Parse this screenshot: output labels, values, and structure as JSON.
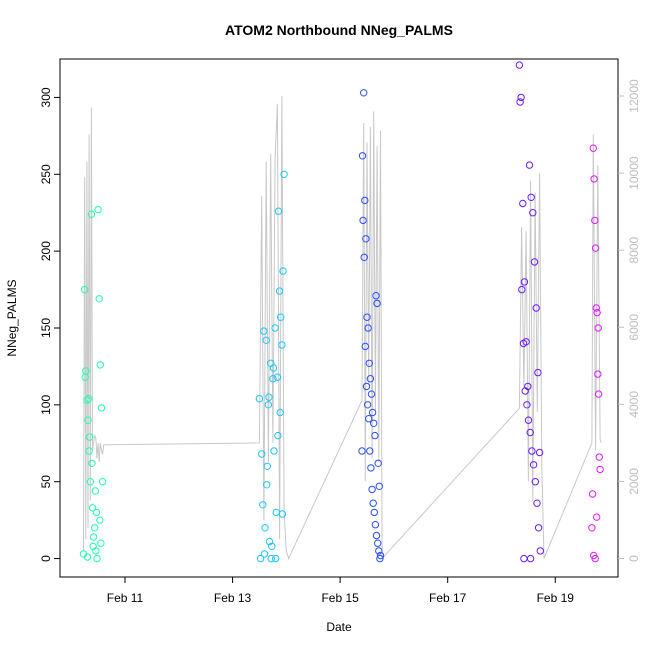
{
  "chart_data": {
    "type": "scatter",
    "title": "ATOM2 Northbound NNeg_PALMS",
    "xlabel": "Date",
    "ylabel": "NNeg_PALMS",
    "x_unit": "days",
    "xlim": [
      "Feb 9 19:00",
      "Feb 20 04:00"
    ],
    "ylim": [
      -12,
      325
    ],
    "y2lim": [
      -480,
      12960
    ],
    "x_ticks": [
      {
        "label": "Feb 11",
        "value": "Feb 11"
      },
      {
        "label": "Feb 13",
        "value": "Feb 13"
      },
      {
        "label": "Feb 15",
        "value": "Feb 15"
      },
      {
        "label": "Feb 17",
        "value": "Feb 17"
      },
      {
        "label": "Feb 19",
        "value": "Feb 19"
      }
    ],
    "y_ticks": [
      0,
      50,
      100,
      150,
      200,
      250,
      300
    ],
    "y2_ticks": [
      0,
      2000,
      4000,
      6000,
      8000,
      10000,
      12000
    ],
    "grid": false,
    "legend": "none",
    "colors": {
      "flight1": "#1fffb0",
      "flight2": "#1ac6ff",
      "flight3": "#2a4dff",
      "flight4": "#6a1aff",
      "flight5": "#e01aff",
      "altitude_line": "#c8c8c8",
      "axis": "#000000",
      "right_axis": "#bdbdbd"
    },
    "series": [
      {
        "name": "",
        "color": "#1fffb0",
        "x": [
          "Feb 10 06:00",
          "Feb 10 06:30",
          "Feb 10 07:00",
          "Feb 10 07:30",
          "Feb 10 08:00",
          "Feb 10 08:30",
          "Feb 10 09:00",
          "Feb 10 09:30",
          "Feb 10 10:00",
          "Feb 10 10:30",
          "Feb 10 11:00",
          "Feb 10 11:30",
          "Feb 10 12:00",
          "Feb 10 12:30",
          "Feb 10 13:00",
          "Feb 10 13:30",
          "Feb 10 14:00",
          "Feb 10 05:30",
          "Feb 10 06:15",
          "Feb 10 07:45",
          "Feb 10 08:15",
          "Feb 10 09:15",
          "Feb 10 10:45",
          "Feb 10 11:15",
          "Feb 10 12:45",
          "Feb 10 13:15",
          "Feb 10 07:15",
          "Feb 10 09:45"
        ],
        "y": [
          175,
          122,
          103,
          90,
          70,
          50,
          224,
          33,
          14,
          20,
          5,
          0,
          227,
          169,
          126,
          98,
          50,
          3,
          118,
          104,
          79,
          62,
          44,
          30,
          25,
          10,
          1,
          8
        ]
      },
      {
        "name": "",
        "color": "#1ac6ff",
        "x": [
          "Feb 13 12:00",
          "Feb 13 13:00",
          "Feb 13 14:00",
          "Feb 13 15:00",
          "Feb 13 16:00",
          "Feb 13 17:00",
          "Feb 13 18:00",
          "Feb 13 19:00",
          "Feb 13 20:00",
          "Feb 13 21:00",
          "Feb 13 22:00",
          "Feb 13 23:00",
          "Feb 13 12:30",
          "Feb 13 13:30",
          "Feb 13 14:30",
          "Feb 13 15:30",
          "Feb 13 16:30",
          "Feb 13 17:30",
          "Feb 13 18:30",
          "Feb 13 19:30",
          "Feb 13 20:30",
          "Feb 13 21:30",
          "Feb 13 22:30",
          "Feb 13 16:15",
          "Feb 13 18:15",
          "Feb 13 20:15",
          "Feb 13 15:15",
          "Feb 13 19:15",
          "Feb 13 21:15",
          "Feb 13 17:15",
          "Feb 13 22:15",
          "Feb 13 14:15"
        ],
        "y": [
          104,
          68,
          148,
          142,
          100,
          127,
          117,
          150,
          118,
          174,
          139,
          250,
          0,
          35,
          20,
          60,
          11,
          8,
          70,
          30,
          226,
          157,
          187,
          105,
          124,
          80,
          48,
          0,
          95,
          0,
          29,
          3
        ]
      },
      {
        "name": "",
        "color": "#2a4dff",
        "x": [
          "Feb 15 10:00",
          "Feb 15 10:30",
          "Feb 15 11:00",
          "Feb 15 11:30",
          "Feb 15 12:00",
          "Feb 15 12:30",
          "Feb 15 13:00",
          "Feb 15 13:30",
          "Feb 15 14:00",
          "Feb 15 14:30",
          "Feb 15 15:00",
          "Feb 15 15:30",
          "Feb 15 16:00",
          "Feb 15 16:30",
          "Feb 15 17:00",
          "Feb 15 17:30",
          "Feb 15 18:00",
          "Feb 15 10:15",
          "Feb 15 10:45",
          "Feb 15 11:15",
          "Feb 15 11:45",
          "Feb 15 12:15",
          "Feb 15 12:45",
          "Feb 15 13:15",
          "Feb 15 13:45",
          "Feb 15 14:15",
          "Feb 15 14:45",
          "Feb 15 15:15",
          "Feb 15 15:45",
          "Feb 15 16:15",
          "Feb 15 16:45",
          "Feb 15 17:15",
          "Feb 15 17:45",
          "Feb 15 09:45"
        ],
        "y": [
          262,
          303,
          233,
          208,
          157,
          150,
          127,
          117,
          107,
          95,
          88,
          80,
          171,
          166,
          62,
          47,
          2,
          220,
          196,
          138,
          112,
          100,
          91,
          70,
          59,
          45,
          36,
          30,
          22,
          15,
          10,
          5,
          0,
          70
        ]
      },
      {
        "name": "",
        "color": "#6a1aff",
        "x": [
          "Feb 18 08:00",
          "Feb 18 08:45",
          "Feb 18 09:30",
          "Feb 18 10:15",
          "Feb 18 11:00",
          "Feb 18 11:45",
          "Feb 18 12:30",
          "Feb 18 13:15",
          "Feb 18 14:00",
          "Feb 18 14:45",
          "Feb 18 15:30",
          "Feb 18 16:15",
          "Feb 18 17:00",
          "Feb 18 08:20",
          "Feb 18 09:05",
          "Feb 18 09:50",
          "Feb 18 10:35",
          "Feb 18 11:20",
          "Feb 18 12:05",
          "Feb 18 12:50",
          "Feb 18 13:35",
          "Feb 18 14:20",
          "Feb 18 15:05",
          "Feb 18 15:50",
          "Feb 18 16:35",
          "Feb 18 17:20",
          "Feb 18 10:00",
          "Feb 18 13:00"
        ],
        "y": [
          321,
          300,
          231,
          180,
          141,
          112,
          256,
          235,
          225,
          193,
          163,
          121,
          69,
          297,
          175,
          140,
          109,
          100,
          90,
          82,
          70,
          61,
          50,
          36,
          20,
          5,
          0,
          0
        ]
      },
      {
        "name": "",
        "color": "#e01aff",
        "x": [
          "Feb 19 17:00",
          "Feb 19 17:20",
          "Feb 19 17:40",
          "Feb 19 18:00",
          "Feb 19 18:20",
          "Feb 19 18:40",
          "Feb 19 19:00",
          "Feb 19 19:20",
          "Feb 19 19:40",
          "Feb 19 20:00",
          "Feb 19 16:40",
          "Feb 19 16:20",
          "Feb 19 17:10",
          "Feb 19 17:50",
          "Feb 19 18:30",
          "Feb 19 19:10"
        ],
        "y": [
          267,
          247,
          220,
          202,
          163,
          160,
          120,
          107,
          66,
          58,
          42,
          20,
          2,
          0,
          27,
          150
        ]
      }
    ],
    "altitude_line": {
      "name": "",
      "axis": "right",
      "x": [
        "Feb 10 05:30",
        "Feb 10 06:00",
        "Feb 10 06:30",
        "Feb 10 07:00",
        "Feb 10 07:30",
        "Feb 10 08:00",
        "Feb 10 08:30",
        "Feb 10 09:00",
        "Feb 10 09:30",
        "Feb 10 10:00",
        "Feb 10 10:30",
        "Feb 10 11:00",
        "Feb 10 11:30",
        "Feb 10 12:00",
        "Feb 10 12:30",
        "Feb 10 13:00",
        "Feb 10 13:30",
        "Feb 10 14:00",
        "Feb 10 14:30",
        "Feb 13 12:00",
        "Feb 13 13:00",
        "Feb 13 14:00",
        "Feb 13 15:00",
        "Feb 13 16:00",
        "Feb 13 17:00",
        "Feb 13 18:00",
        "Feb 13 19:00",
        "Feb 13 20:00",
        "Feb 13 21:00",
        "Feb 13 22:00",
        "Feb 13 23:00",
        "Feb 14 00:00",
        "Feb 14 01:00",
        "Feb 15 09:45",
        "Feb 15 10:30",
        "Feb 15 11:15",
        "Feb 15 12:00",
        "Feb 15 12:45",
        "Feb 15 13:30",
        "Feb 15 14:15",
        "Feb 15 15:00",
        "Feb 15 15:45",
        "Feb 15 16:30",
        "Feb 15 17:15",
        "Feb 15 18:00",
        "Feb 15 18:45",
        "Feb 18 08:00",
        "Feb 18 09:00",
        "Feb 18 10:00",
        "Feb 18 11:00",
        "Feb 18 12:00",
        "Feb 18 13:00",
        "Feb 18 14:00",
        "Feb 18 15:00",
        "Feb 18 16:00",
        "Feb 18 17:00",
        "Feb 18 18:00",
        "Feb 18 19:00",
        "Feb 19 16:20",
        "Feb 19 17:00",
        "Feb 19 18:00",
        "Feb 19 19:00",
        "Feb 19 20:00",
        "Feb 19 20:30"
      ],
      "y": [
        200,
        9900,
        500,
        10300,
        800,
        11000,
        1500,
        11700,
        2800,
        3000,
        3200,
        3100,
        2600,
        3000,
        2500,
        3000,
        2800,
        2700,
        2950,
        3000,
        9400,
        1000,
        10300,
        2500,
        10500,
        3000,
        10400,
        11800,
        500,
        12000,
        1200,
        200,
        0,
        4100,
        11300,
        2000,
        10800,
        4500,
        11200,
        2600,
        11600,
        3800,
        10700,
        2500,
        11100,
        0,
        3900,
        8600,
        4400,
        8500,
        2000,
        9800,
        1500,
        9500,
        3800,
        10000,
        2400,
        0,
        3000,
        11000,
        2800,
        10200,
        3100,
        3000
      ]
    }
  }
}
